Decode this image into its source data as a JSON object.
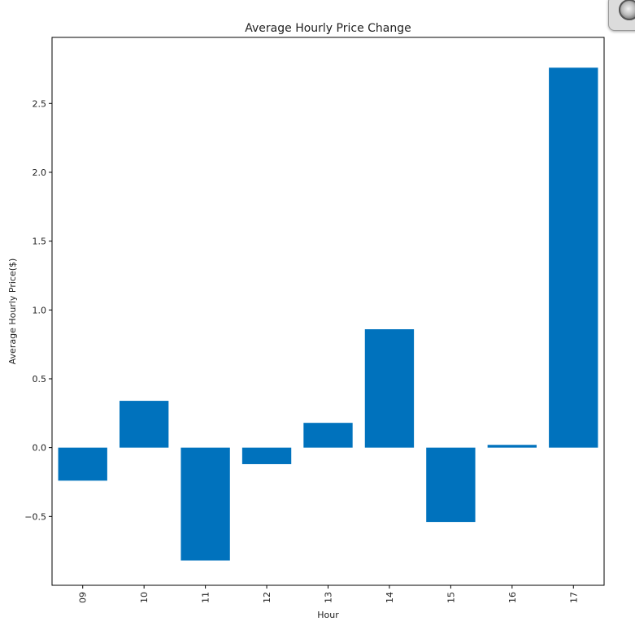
{
  "chart_data": {
    "type": "bar",
    "title": "Average Hourly Price Change",
    "xlabel": "Hour",
    "ylabel": "Average Hourly Price($)",
    "categories": [
      "09",
      "10",
      "11",
      "12",
      "13",
      "14",
      "15",
      "16",
      "17"
    ],
    "values": [
      -0.24,
      0.34,
      -0.82,
      -0.12,
      0.18,
      0.86,
      -0.54,
      0.02,
      2.76
    ],
    "ylim": [
      -1.0,
      2.98
    ],
    "yticks": [
      -0.5,
      0.0,
      0.5,
      1.0,
      1.5,
      2.0,
      2.5
    ],
    "ytick_labels": [
      "−0.5",
      "0.0",
      "0.5",
      "1.0",
      "1.5",
      "2.0",
      "2.5"
    ],
    "bar_color": "#0072bd",
    "grid": false,
    "legend": "none"
  },
  "colors": {
    "bar": "#0072bd",
    "axes": "#000000",
    "text": "#222222",
    "background": "#ffffff"
  },
  "overlay": {
    "icon": "camera-lens-icon"
  }
}
